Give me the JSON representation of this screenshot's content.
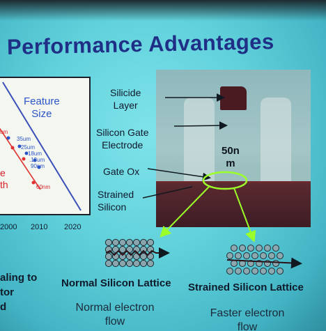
{
  "title": "Performance Advantages",
  "chart": {
    "title_line1": "Feature",
    "title_line2": "Size",
    "labels": [
      "um",
      "35um",
      "25um",
      "18um",
      ".13um",
      "90nm",
      "60nm"
    ],
    "side_labels": [
      "e",
      "th"
    ],
    "x_ticks": [
      "2000",
      "2010",
      "2020"
    ]
  },
  "left_text": {
    "line1": "aling to",
    "line2": "tor",
    "line3": "d"
  },
  "photo_labels": {
    "silicide": [
      "Silicide",
      "Layer"
    ],
    "gate_electrode": [
      "Silicon Gate",
      "Electrode"
    ],
    "gate_ox": "Gate Ox",
    "strained": [
      "Strained",
      "Silicon"
    ],
    "scale": [
      "50n",
      "m"
    ]
  },
  "lattices": {
    "normal": {
      "title": "Normal Silicon Lattice",
      "desc": [
        "Normal electron",
        "flow"
      ]
    },
    "strained": {
      "title": "Strained Silicon Lattice",
      "desc": [
        "Faster electron",
        "flow"
      ]
    }
  },
  "colors": {
    "title": "#1f2f86",
    "accent_green": "#9bff2a"
  }
}
